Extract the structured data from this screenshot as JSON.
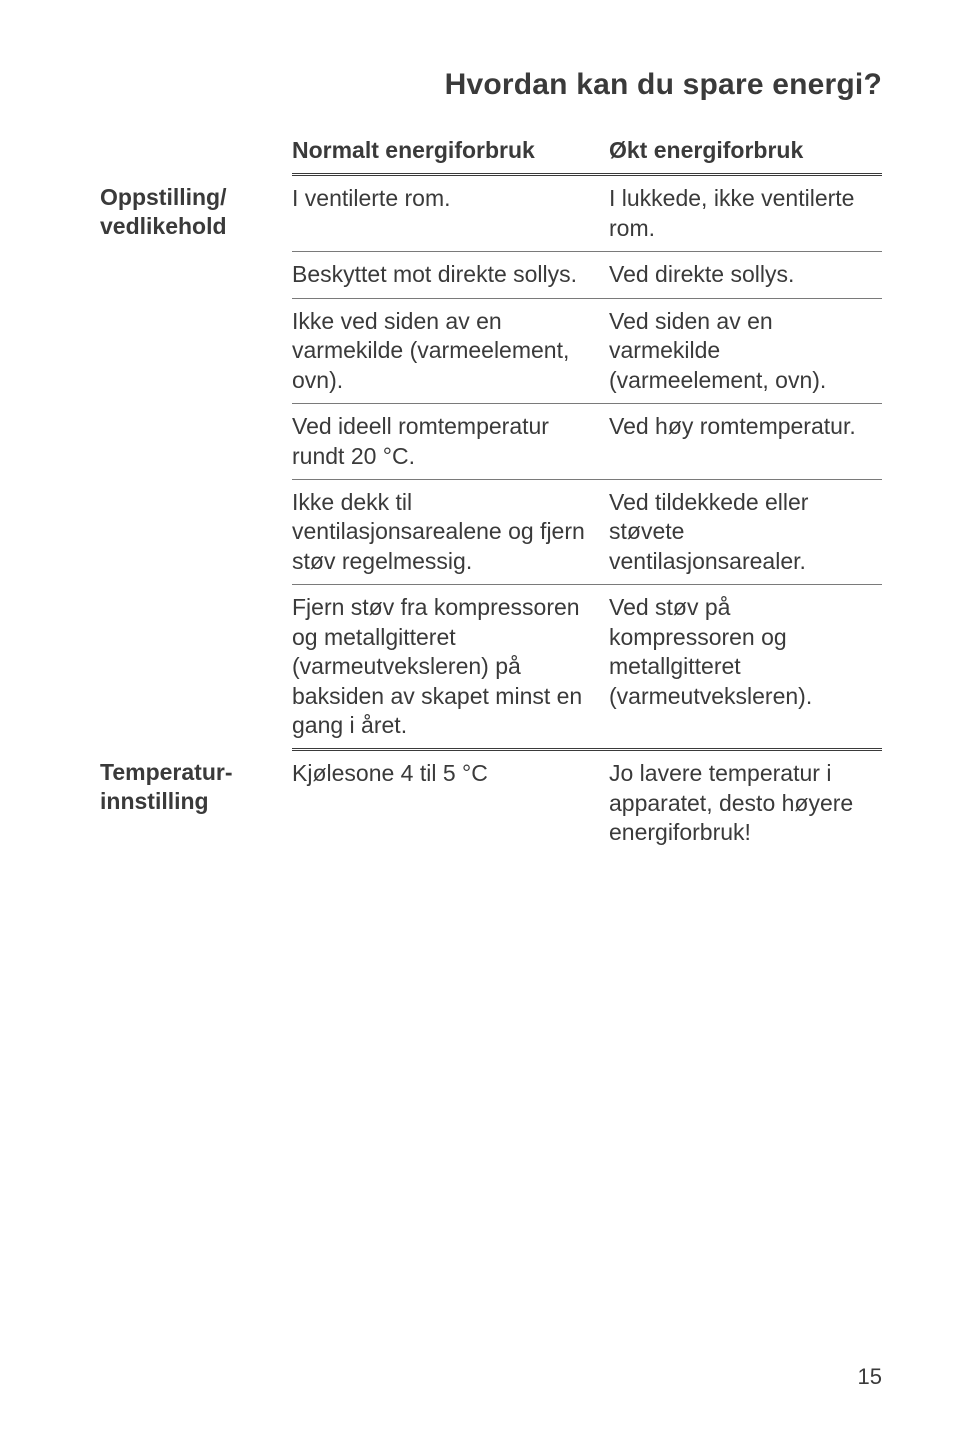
{
  "title": "Hvordan kan du spare energi?",
  "columns": {
    "rowhead_blank": "",
    "normal": "Normalt energiforbruk",
    "increased": "Økt energiforbruk"
  },
  "sections": [
    {
      "label": "Oppstilling/ vedlikehold",
      "rows": [
        {
          "normal": "I ventilerte rom.",
          "increased": "I lukkede, ikke ventilerte rom."
        },
        {
          "normal": "Beskyttet mot direkte sollys.",
          "increased": "Ved direkte sollys."
        },
        {
          "normal": "Ikke ved siden av en varmekilde (varmeelement, ovn).",
          "increased": "Ved siden av en varmekilde (varmeelement, ovn)."
        },
        {
          "normal": "Ved ideell romtemperatur rundt 20 °C.",
          "increased": "Ved høy romtemperatur."
        },
        {
          "normal": "Ikke dekk til ventilasjonsarealene og fjern støv regelmessig.",
          "increased": "Ved tildekkede eller støvete ventilasjonsarealer."
        },
        {
          "normal": "Fjern støv fra kompressoren og metallgitteret (varmeutveksleren) på baksiden av skapet minst en gang i året.",
          "increased": "Ved støv på kompressoren og metallgitteret (varmeutveksleren)."
        }
      ]
    },
    {
      "label": "Temperatur-innstilling",
      "rows": [
        {
          "normal": "Kjølesone 4 til 5 °C",
          "increased": "Jo lavere temperatur i apparatet, desto høyere energiforbruk!"
        }
      ]
    }
  ],
  "page_number": "15",
  "colors": {
    "text": "#3a3a3a",
    "rule": "#7a7a7a",
    "background": "#ffffff"
  }
}
